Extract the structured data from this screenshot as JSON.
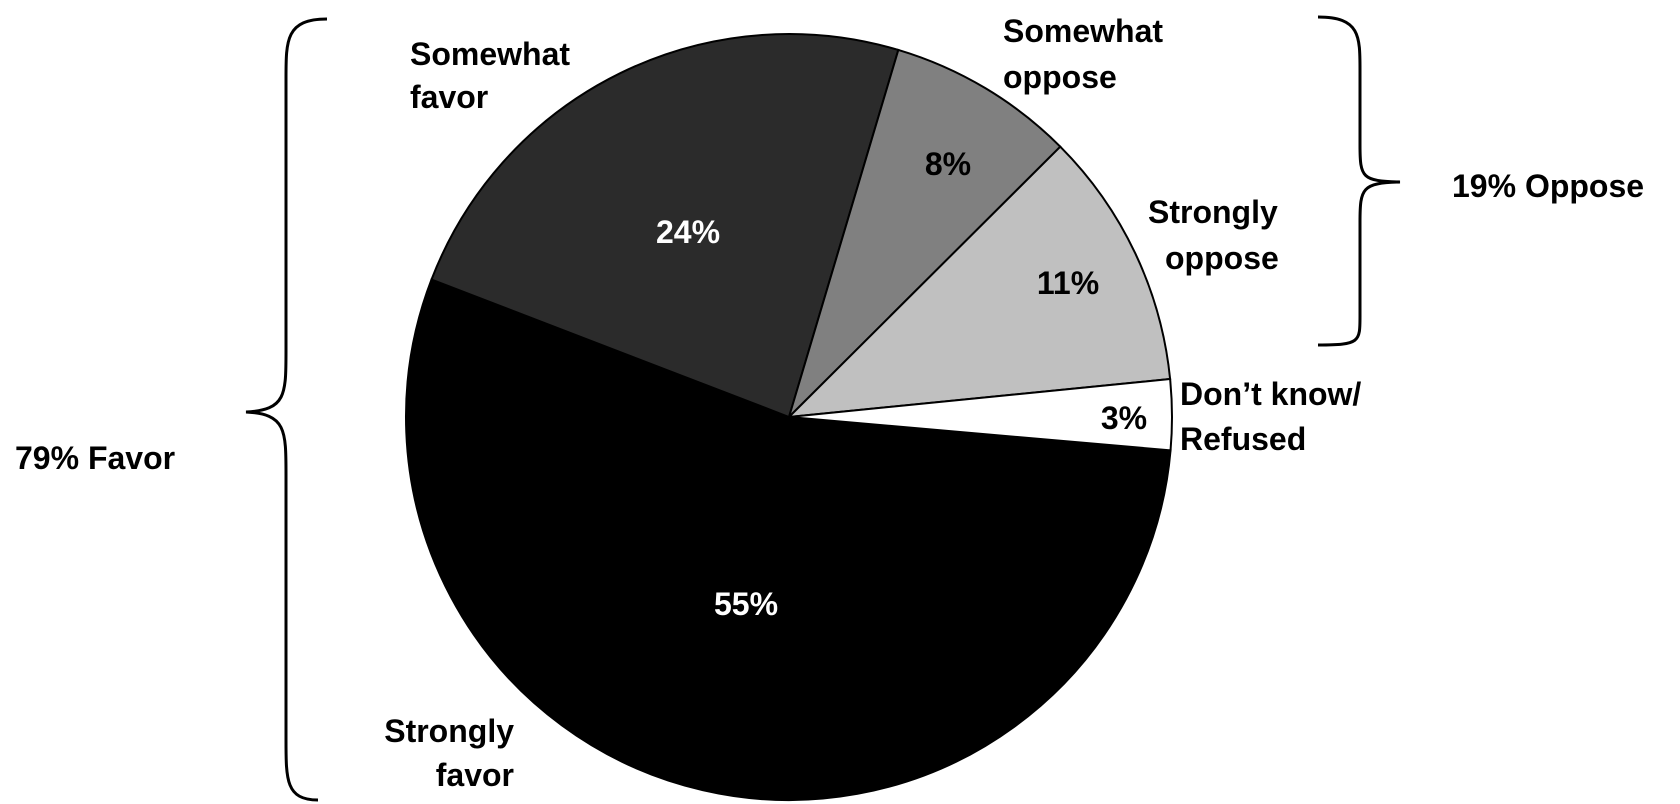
{
  "chart_data": {
    "type": "pie",
    "categories": [
      "Strongly favor",
      "Somewhat favor",
      "Somewhat oppose",
      "Strongly oppose",
      "Don’t know/ Refused"
    ],
    "values": [
      55,
      24,
      8,
      11,
      3
    ],
    "value_labels": [
      "55%",
      "24%",
      "8%",
      "11%",
      "3%"
    ],
    "category_label_lines": [
      [
        "Strongly",
        "favor"
      ],
      [
        "Somewhat",
        "favor"
      ],
      [
        "Somewhat",
        "oppose"
      ],
      [
        "Strongly",
        "oppose"
      ],
      [
        "Don’t know/",
        "Refused"
      ]
    ],
    "colors": [
      "#000000",
      "#2b2b2b",
      "#808080",
      "#c0c0c0",
      "#ffffff"
    ],
    "value_label_colors": [
      "#ffffff",
      "#ffffff",
      "#000000",
      "#000000",
      "#000000"
    ],
    "groups": [
      {
        "label": "79% Favor",
        "members": [
          "Strongly favor",
          "Somewhat favor"
        ]
      },
      {
        "label": "19% Oppose",
        "members": [
          "Somewhat oppose",
          "Strongly oppose"
        ]
      }
    ],
    "legend": "none",
    "title": ""
  }
}
